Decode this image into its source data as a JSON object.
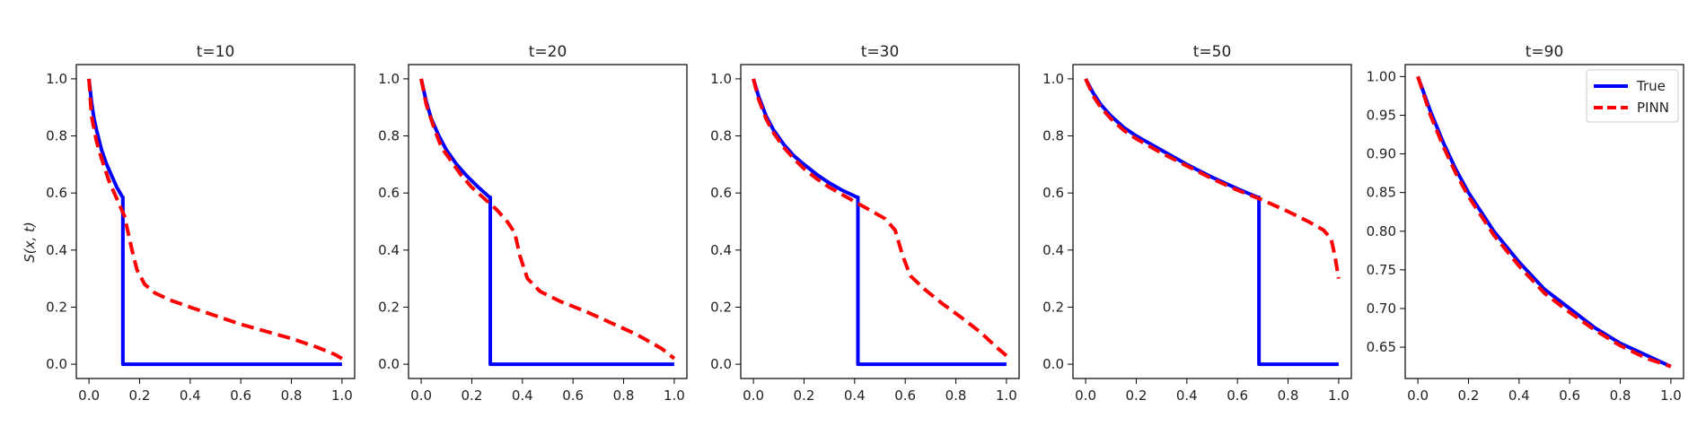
{
  "figure": {
    "ylabel": "S(x, t)"
  },
  "colors": {
    "true": "#0000ff",
    "pinn": "#ff0000",
    "axes": "#000000"
  },
  "chart_data": [
    {
      "type": "line",
      "title": "t=10",
      "xlabel": "",
      "ylabel": "S(x, t)",
      "xlim": [
        -0.05,
        1.05
      ],
      "ylim": [
        -0.05,
        1.05
      ],
      "xticks": [
        0.0,
        0.2,
        0.4,
        0.6,
        0.8,
        1.0
      ],
      "xtick_labels": [
        "0.0",
        "0.2",
        "0.4",
        "0.6",
        "0.8",
        "1.0"
      ],
      "yticks": [
        0.0,
        0.2,
        0.4,
        0.6,
        0.8,
        1.0
      ],
      "ytick_labels": [
        "0.0",
        "0.2",
        "0.4",
        "0.6",
        "0.8",
        "1.0"
      ],
      "grid": false,
      "series": [
        {
          "name": "True",
          "style": "solid",
          "color": "#0000ff",
          "x": [
            0,
            0.01,
            0.02,
            0.03,
            0.05,
            0.07,
            0.09,
            0.11,
            0.133,
            0.134,
            0.134,
            1.0
          ],
          "y": [
            1.0,
            0.92,
            0.86,
            0.82,
            0.75,
            0.7,
            0.66,
            0.62,
            0.585,
            0.585,
            0.0,
            0.0
          ]
        },
        {
          "name": "PINN",
          "style": "dashed",
          "color": "#ff0000",
          "x": [
            0,
            0.01,
            0.03,
            0.05,
            0.08,
            0.11,
            0.14,
            0.17,
            0.19,
            0.22,
            0.26,
            0.32,
            0.4,
            0.5,
            0.6,
            0.7,
            0.8,
            0.9,
            0.97,
            1.0
          ],
          "y": [
            1.0,
            0.87,
            0.78,
            0.72,
            0.64,
            0.58,
            0.52,
            0.4,
            0.33,
            0.28,
            0.25,
            0.225,
            0.2,
            0.17,
            0.14,
            0.115,
            0.09,
            0.06,
            0.035,
            0.02
          ]
        }
      ]
    },
    {
      "type": "line",
      "title": "t=20",
      "xlabel": "",
      "ylabel": "",
      "xlim": [
        -0.05,
        1.05
      ],
      "ylim": [
        -0.05,
        1.05
      ],
      "xticks": [
        0.0,
        0.2,
        0.4,
        0.6,
        0.8,
        1.0
      ],
      "xtick_labels": [
        "0.0",
        "0.2",
        "0.4",
        "0.6",
        "0.8",
        "1.0"
      ],
      "yticks": [
        0.0,
        0.2,
        0.4,
        0.6,
        0.8,
        1.0
      ],
      "ytick_labels": [
        "0.0",
        "0.2",
        "0.4",
        "0.6",
        "0.8",
        "1.0"
      ],
      "grid": false,
      "series": [
        {
          "name": "True",
          "style": "solid",
          "color": "#0000ff",
          "x": [
            0,
            0.02,
            0.04,
            0.07,
            0.1,
            0.14,
            0.18,
            0.22,
            0.27,
            0.273,
            0.273,
            1.0
          ],
          "y": [
            1.0,
            0.92,
            0.86,
            0.8,
            0.75,
            0.7,
            0.66,
            0.625,
            0.585,
            0.585,
            0.0,
            0.0
          ]
        },
        {
          "name": "PINN",
          "style": "dashed",
          "color": "#ff0000",
          "x": [
            0,
            0.02,
            0.05,
            0.08,
            0.12,
            0.16,
            0.2,
            0.25,
            0.3,
            0.34,
            0.37,
            0.39,
            0.42,
            0.47,
            0.55,
            0.65,
            0.75,
            0.85,
            0.95,
            1.0
          ],
          "y": [
            1.0,
            0.91,
            0.83,
            0.76,
            0.71,
            0.66,
            0.62,
            0.58,
            0.54,
            0.5,
            0.46,
            0.38,
            0.3,
            0.255,
            0.22,
            0.185,
            0.145,
            0.105,
            0.055,
            0.02
          ]
        }
      ]
    },
    {
      "type": "line",
      "title": "t=30",
      "xlabel": "",
      "ylabel": "",
      "xlim": [
        -0.05,
        1.05
      ],
      "ylim": [
        -0.05,
        1.05
      ],
      "xticks": [
        0.0,
        0.2,
        0.4,
        0.6,
        0.8,
        1.0
      ],
      "xtick_labels": [
        "0.0",
        "0.2",
        "0.4",
        "0.6",
        "0.8",
        "1.0"
      ],
      "yticks": [
        0.0,
        0.2,
        0.4,
        0.6,
        0.8,
        1.0
      ],
      "ytick_labels": [
        "0.0",
        "0.2",
        "0.4",
        "0.6",
        "0.8",
        "1.0"
      ],
      "grid": false,
      "series": [
        {
          "name": "True",
          "style": "solid",
          "color": "#0000ff",
          "x": [
            0,
            0.02,
            0.05,
            0.08,
            0.12,
            0.16,
            0.2,
            0.25,
            0.3,
            0.35,
            0.41,
            0.413,
            0.413,
            1.0
          ],
          "y": [
            1.0,
            0.94,
            0.87,
            0.82,
            0.77,
            0.73,
            0.7,
            0.665,
            0.635,
            0.61,
            0.585,
            0.585,
            0.0,
            0.0
          ]
        },
        {
          "name": "PINN",
          "style": "dashed",
          "color": "#ff0000",
          "x": [
            0,
            0.02,
            0.05,
            0.08,
            0.12,
            0.16,
            0.2,
            0.25,
            0.3,
            0.35,
            0.4,
            0.46,
            0.52,
            0.56,
            0.59,
            0.62,
            0.68,
            0.75,
            0.82,
            0.9,
            0.96,
            1.0
          ],
          "y": [
            1.0,
            0.93,
            0.86,
            0.81,
            0.76,
            0.72,
            0.685,
            0.65,
            0.62,
            0.595,
            0.57,
            0.54,
            0.51,
            0.47,
            0.38,
            0.31,
            0.26,
            0.21,
            0.165,
            0.11,
            0.06,
            0.03
          ]
        }
      ]
    },
    {
      "type": "line",
      "title": "t=50",
      "xlabel": "",
      "ylabel": "",
      "xlim": [
        -0.05,
        1.05
      ],
      "ylim": [
        -0.05,
        1.05
      ],
      "xticks": [
        0.0,
        0.2,
        0.4,
        0.6,
        0.8,
        1.0
      ],
      "xtick_labels": [
        "0.0",
        "0.2",
        "0.4",
        "0.6",
        "0.8",
        "1.0"
      ],
      "yticks": [
        0.0,
        0.2,
        0.4,
        0.6,
        0.8,
        1.0
      ],
      "ytick_labels": [
        "0.0",
        "0.2",
        "0.4",
        "0.6",
        "0.8",
        "1.0"
      ],
      "grid": false,
      "series": [
        {
          "name": "True",
          "style": "solid",
          "color": "#0000ff",
          "x": [
            0,
            0.03,
            0.06,
            0.1,
            0.15,
            0.2,
            0.3,
            0.4,
            0.5,
            0.6,
            0.68,
            0.685,
            0.685,
            1.0
          ],
          "y": [
            1.0,
            0.95,
            0.91,
            0.87,
            0.83,
            0.8,
            0.75,
            0.7,
            0.655,
            0.615,
            0.585,
            0.585,
            0.0,
            0.0
          ]
        },
        {
          "name": "PINN",
          "style": "dashed",
          "color": "#ff0000",
          "x": [
            0,
            0.03,
            0.06,
            0.1,
            0.15,
            0.2,
            0.3,
            0.4,
            0.5,
            0.6,
            0.7,
            0.8,
            0.88,
            0.94,
            0.97,
            0.985,
            1.0
          ],
          "y": [
            1.0,
            0.94,
            0.9,
            0.86,
            0.82,
            0.79,
            0.74,
            0.695,
            0.65,
            0.61,
            0.575,
            0.535,
            0.5,
            0.47,
            0.44,
            0.38,
            0.3
          ]
        }
      ]
    },
    {
      "type": "line",
      "title": "t=90",
      "xlabel": "",
      "ylabel": "",
      "xlim": [
        -0.05,
        1.05
      ],
      "ylim": [
        0.6095,
        1.0155
      ],
      "xticks": [
        0.0,
        0.2,
        0.4,
        0.6,
        0.8,
        1.0
      ],
      "xtick_labels": [
        "0.0",
        "0.2",
        "0.4",
        "0.6",
        "0.8",
        "1.0"
      ],
      "yticks": [
        0.65,
        0.7,
        0.75,
        0.8,
        0.85,
        0.9,
        0.95,
        1.0
      ],
      "ytick_labels": [
        "0.65",
        "0.70",
        "0.75",
        "0.80",
        "0.85",
        "0.90",
        "0.95",
        "1.00"
      ],
      "grid": false,
      "legend": "top-right",
      "series": [
        {
          "name": "True",
          "style": "solid",
          "color": "#0000ff",
          "x": [
            0,
            0.05,
            0.1,
            0.15,
            0.2,
            0.3,
            0.4,
            0.5,
            0.6,
            0.7,
            0.8,
            0.9,
            1.0
          ],
          "y": [
            1.0,
            0.955,
            0.915,
            0.88,
            0.85,
            0.8,
            0.76,
            0.725,
            0.7,
            0.675,
            0.655,
            0.64,
            0.625
          ]
        },
        {
          "name": "PINN",
          "style": "dashed",
          "color": "#ff0000",
          "x": [
            0,
            0.05,
            0.1,
            0.15,
            0.2,
            0.3,
            0.4,
            0.5,
            0.6,
            0.7,
            0.8,
            0.9,
            1.0
          ],
          "y": [
            1.0,
            0.95,
            0.91,
            0.875,
            0.845,
            0.795,
            0.755,
            0.72,
            0.695,
            0.672,
            0.652,
            0.636,
            0.625
          ]
        }
      ]
    }
  ]
}
